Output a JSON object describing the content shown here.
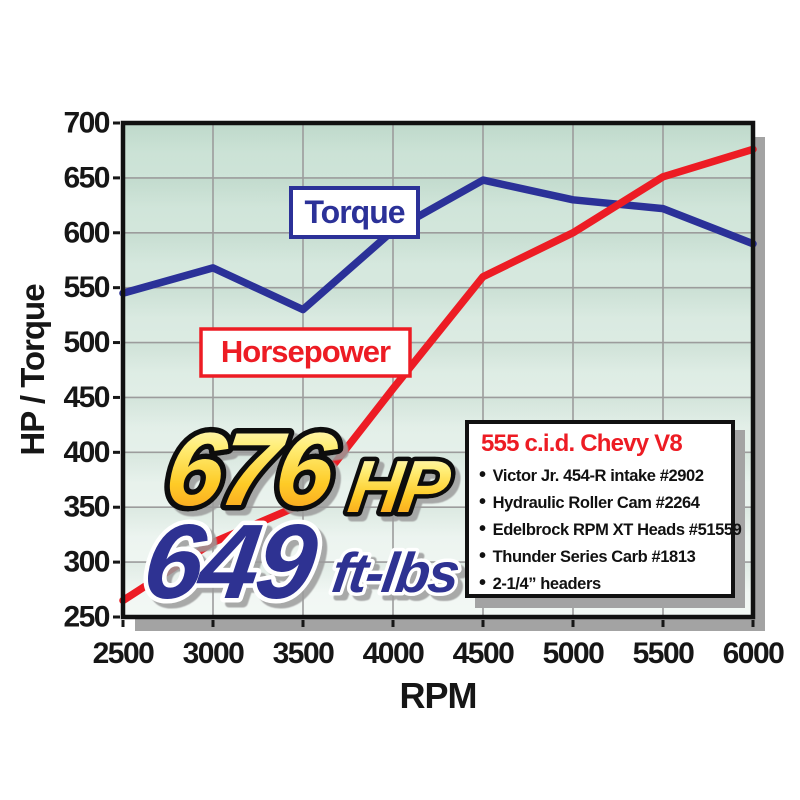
{
  "chart_data": {
    "type": "line",
    "x": [
      2500,
      3000,
      3500,
      4000,
      4500,
      5000,
      5500,
      6000
    ],
    "series": [
      {
        "name": "Torque",
        "color": "#2b3198",
        "values": [
          545,
          568,
          530,
          602,
          648,
          630,
          622,
          590
        ]
      },
      {
        "name": "Horsepower",
        "color": "#ed1c24",
        "values": [
          265,
          318,
          353,
          458,
          560,
          600,
          651,
          676
        ]
      }
    ],
    "title": "",
    "xlabel": "RPM",
    "ylabel": "HP / Torque",
    "xlim": [
      2500,
      6000
    ],
    "ylim": [
      250,
      700
    ],
    "x_ticks": [
      2500,
      3000,
      3500,
      4000,
      4500,
      5000,
      5500,
      6000
    ],
    "y_ticks": [
      250,
      300,
      350,
      400,
      450,
      500,
      550,
      600,
      650,
      700
    ],
    "grid": true,
    "legend_position": "inline-labels"
  },
  "annotations": {
    "torque_label": "Torque",
    "horsepower_label": "Horsepower",
    "hp_value": "676",
    "hp_unit": "HP",
    "torque_value": "649",
    "torque_unit": "ft-lbs"
  },
  "info_box": {
    "title": "555 c.i.d. Chevy V8",
    "bullet": "•",
    "items": [
      "Victor Jr. 454-R intake #2902",
      "Hydraulic Roller Cam #2264",
      "Edelbrock RPM XT Heads #51559",
      "Thunder Series Carb #1813",
      "2-1/4” headers"
    ]
  },
  "colors": {
    "torque_line": "#2b3198",
    "horsepower_line": "#ed1c24",
    "plot_bg_top": "#c9e1d4",
    "plot_bg_bottom": "#f3f8f5",
    "gridline": "#9c9c9c",
    "border": "#111111",
    "shadow": "#a3a3a3",
    "gold_top": "#fffce3",
    "gold_bottom": "#f6921e"
  }
}
